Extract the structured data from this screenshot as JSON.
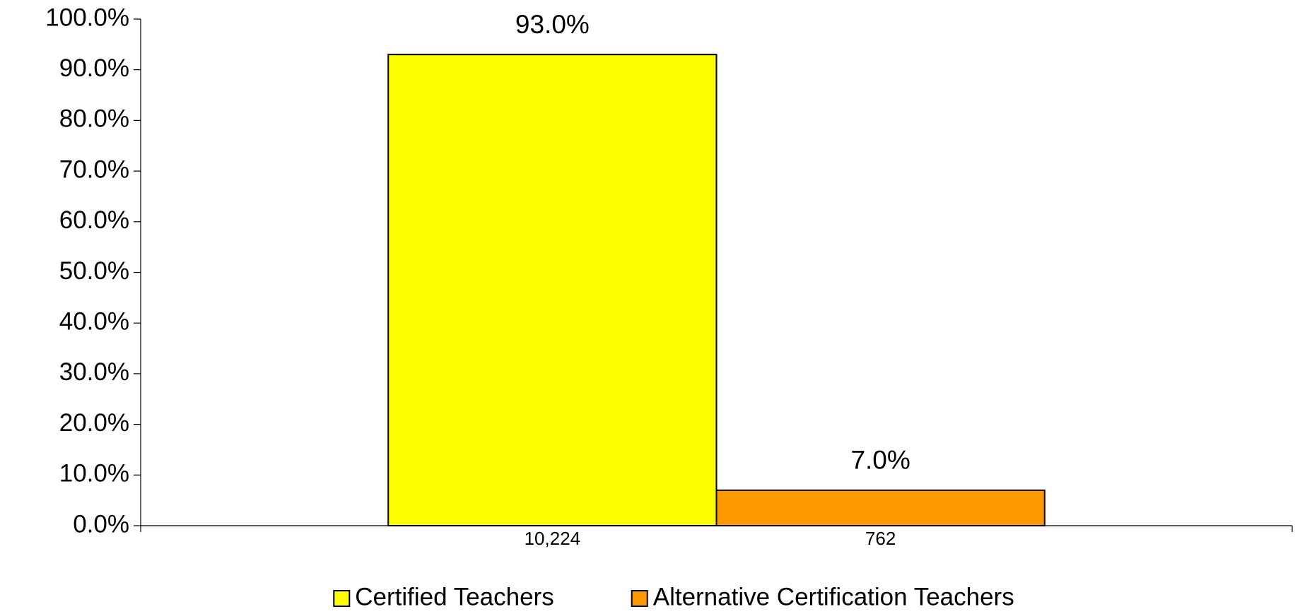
{
  "chart_data": {
    "type": "bar",
    "categories": [
      "10,224",
      "762"
    ],
    "series": [
      {
        "name": "Certified Teachers",
        "color": "#ffff00",
        "values": [
          93.0,
          null
        ],
        "value_labels": [
          "93.0%",
          null
        ]
      },
      {
        "name": "Alternative Certification Teachers",
        "color": "#ff9900",
        "values": [
          null,
          7.0
        ],
        "value_labels": [
          null,
          "7.0%"
        ]
      }
    ],
    "ylim": [
      0,
      100
    ],
    "yticks": [
      {
        "value": 0,
        "label": "0.0%"
      },
      {
        "value": 10,
        "label": "10.0%"
      },
      {
        "value": 20,
        "label": "20.0%"
      },
      {
        "value": 30,
        "label": "30.0%"
      },
      {
        "value": 40,
        "label": "40.0%"
      },
      {
        "value": 50,
        "label": "50.0%"
      },
      {
        "value": 60,
        "label": "60.0%"
      },
      {
        "value": 70,
        "label": "70.0%"
      },
      {
        "value": 80,
        "label": "80.0%"
      },
      {
        "value": 90,
        "label": "90.0%"
      },
      {
        "value": 100,
        "label": "100.0%"
      }
    ],
    "grid": false,
    "legend": "bottom"
  }
}
